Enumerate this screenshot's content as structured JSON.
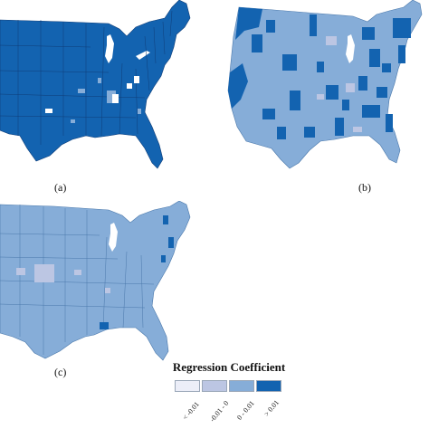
{
  "panels": [
    {
      "label": "(a)"
    },
    {
      "label": "(b)"
    },
    {
      "label": "(c)"
    }
  ],
  "legend": {
    "title": "Regression Coefficient",
    "classes": [
      {
        "label": "< -0.01",
        "color": "#eceef8"
      },
      {
        "label": "-0.01 - 0",
        "color": "#bcc6e3"
      },
      {
        "label": "0 - 0.01",
        "color": "#86add8"
      },
      {
        "label": "> 0.01",
        "color": "#1363b0"
      }
    ]
  },
  "colors": {
    "dark": "#1363b0",
    "light": "#86add8",
    "pale": "#bcc6e3",
    "white": "#ffffff",
    "border": "#0f3d78",
    "border_light": "#6b8fb8"
  }
}
